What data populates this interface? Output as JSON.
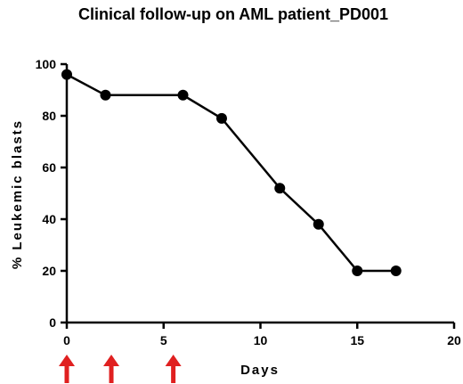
{
  "chart_data": {
    "type": "line",
    "title": "Clinical follow-up on AML patient_PD001",
    "xlabel": "Days",
    "ylabel": "% Leukemic blasts",
    "xlim": [
      0,
      20
    ],
    "ylim": [
      0,
      100
    ],
    "x_ticks": [
      0,
      5,
      10,
      15,
      20
    ],
    "y_ticks": [
      0,
      20,
      40,
      60,
      80,
      100
    ],
    "series": [
      {
        "x": [
          0,
          2,
          6,
          8,
          11,
          13,
          15,
          17
        ],
        "y": [
          96,
          88,
          88,
          79,
          52,
          38,
          20,
          20
        ],
        "color": "#000000",
        "marker": "circle"
      }
    ],
    "annotations": {
      "arrow_days": [
        0,
        2.3,
        5.5
      ],
      "arrow_color": "#e02020"
    },
    "grid": false
  }
}
